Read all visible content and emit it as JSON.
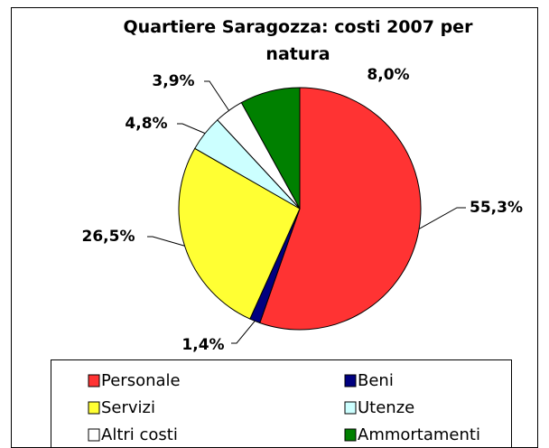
{
  "chart_data": {
    "type": "pie",
    "title": "Quartiere Saragozza: costi 2007 per natura",
    "categories": [
      "Personale",
      "Beni",
      "Servizi",
      "Utenze",
      "Altri costi",
      "Ammortamenti"
    ],
    "values": [
      55.3,
      1.4,
      26.5,
      4.8,
      3.9,
      8.0
    ],
    "value_labels": [
      "55,3%",
      "1,4%",
      "26,5%",
      "4,8%",
      "3,9%",
      "8,0%"
    ],
    "colors": [
      "#ff3333",
      "#000080",
      "#ffff33",
      "#ccffff",
      "#ffffff",
      "#008000"
    ],
    "legend": "bottom"
  }
}
